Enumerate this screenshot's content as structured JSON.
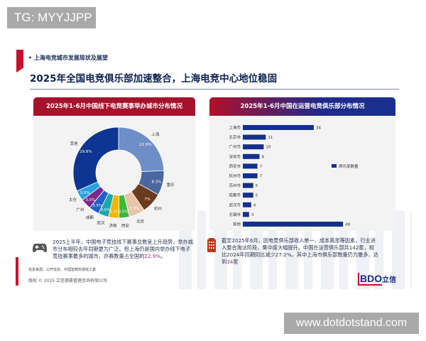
{
  "watermarks": {
    "top": "TG: MYYJJPP",
    "bottom": "www.dotdotstand.com"
  },
  "slide": {
    "section": "• 上海电竞城市发展现状及展望",
    "title": "2025年全国电竞俱乐部加速整合，上海电竞中心地位稳固",
    "source": "信息来源：公开信息、中国音数协游戏工委",
    "copyright": "版权 © 2025 立信德豪管理咨询有限公司",
    "logo": "BDO",
    "logo_cn": "立信"
  },
  "notes": {
    "left": {
      "icon": "gamepad-icon",
      "text": "2025上半年，中国电子竞技线下赛事总数呈上升趋势，举办城市分布相较去年同期更为广泛。但上海仍是国内举办线下电子竞技赛事最多的城市，办赛数量占全国的",
      "highlight": "22.9%",
      "tail": "。"
    },
    "right": {
      "icon": "building-icon",
      "text": "截至2025年6月，因电竞俱乐部收入单一、成本高涨等因素，行业进入整合淘汰阶段，集中度大幅提升。中国在运营俱乐部共142家，相比2024年同期同比减少27.2%。其中上海市俱乐部数量仍为最多，达到",
      "highlight": "34",
      "tail": "家"
    }
  },
  "chart_data": [
    {
      "type": "pie",
      "donut": true,
      "title": "2025年1-6月中国线下电竞赛事举办城市分布情况",
      "unit": "%",
      "slices": [
        {
          "label": "上海",
          "value": 22.9,
          "color": "#6d8ec6"
        },
        {
          "label": "重庆",
          "value": 8.3,
          "color": "#4a679e"
        },
        {
          "label": "杭州",
          "value": 7.0,
          "color": "#6a3b1c"
        },
        {
          "label": "北京",
          "value": 5.3,
          "color": "#e9c4a8"
        },
        {
          "label": "西安",
          "value": 3.5,
          "color": "#3db83a"
        },
        {
          "label": "济南",
          "value": 3.5,
          "color": "#f2b400"
        },
        {
          "label": "武汉",
          "value": 3.5,
          "color": "#18a9a6"
        },
        {
          "label": "成都",
          "value": 3.5,
          "color": "#1f5fc9"
        },
        {
          "label": "广州",
          "value": 3.5,
          "color": "#7b2a8b"
        },
        {
          "label": "太仓",
          "value": 3.5,
          "color": "#27a2e2"
        },
        {
          "label": "其他",
          "value": 29.8,
          "color": "#0d3591"
        }
      ]
    },
    {
      "type": "bar",
      "orientation": "horizontal",
      "title": "2025年1-6月中国在运营电竞俱乐部分布情况",
      "categories": [
        "上海市",
        "北京市",
        "广州市",
        "深圳市",
        "西安市",
        "杭州市",
        "苏州市",
        "成都市",
        "武汉市",
        "无锡市",
        "其他"
      ],
      "series": [
        {
          "name": "俱乐部数量",
          "values": [
            34,
            11,
            10,
            8,
            7,
            7,
            5,
            5,
            4,
            3,
            48
          ],
          "color": "#13318c"
        }
      ],
      "legend": "right"
    }
  ]
}
